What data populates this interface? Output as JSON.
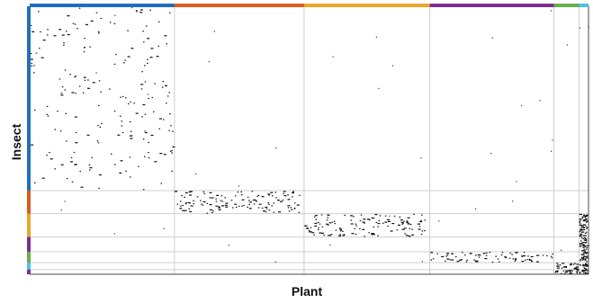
{
  "chart_data": {
    "type": "heatmap",
    "xlabel": "Plant",
    "ylabel": "Insect",
    "grid": true,
    "x_range": [
      0,
      100
    ],
    "y_range": [
      0,
      100
    ],
    "x_modules": [
      {
        "start": 0,
        "end": 25.9,
        "color": "#1f6fbf"
      },
      {
        "start": 25.9,
        "end": 49.1,
        "color": "#d95f1e"
      },
      {
        "start": 49.1,
        "end": 71.6,
        "color": "#e8a72a"
      },
      {
        "start": 71.6,
        "end": 93.8,
        "color": "#7e2f8e"
      },
      {
        "start": 93.8,
        "end": 98.3,
        "color": "#6ab04c"
      },
      {
        "start": 98.3,
        "end": 100,
        "color": "#4dbfe8"
      }
    ],
    "y_modules": [
      {
        "start": 0,
        "end": 68.8,
        "color": "#1f6fbf"
      },
      {
        "start": 68.8,
        "end": 77.4,
        "color": "#d95f1e"
      },
      {
        "start": 77.4,
        "end": 86.1,
        "color": "#e8a72a"
      },
      {
        "start": 86.1,
        "end": 91.6,
        "color": "#7e2f8e"
      },
      {
        "start": 91.6,
        "end": 95.7,
        "color": "#6ab04c"
      },
      {
        "start": 95.7,
        "end": 98.3,
        "color": "#4dbfe8"
      },
      {
        "start": 98.3,
        "end": 100,
        "color": "#7e2f8e"
      }
    ],
    "blocks": [
      {
        "name": "blue-module",
        "x": [
          0,
          25.9
        ],
        "y": [
          0,
          68.8
        ],
        "density": 0.012
      },
      {
        "name": "orange-module",
        "x": [
          25.9,
          49.1
        ],
        "y": [
          68.8,
          77.4
        ],
        "density": 0.07
      },
      {
        "name": "yellow-module",
        "x": [
          49.1,
          71.6
        ],
        "y": [
          77.4,
          86.1
        ],
        "density": 0.07
      },
      {
        "name": "purple-module",
        "x": [
          71.6,
          93.8
        ],
        "y": [
          91.6,
          95.7
        ],
        "density": 0.09
      },
      {
        "name": "green-module",
        "x": [
          93.8,
          98.3
        ],
        "y": [
          95.7,
          100
        ],
        "density": 0.25
      },
      {
        "name": "cyan-module",
        "x": [
          98.3,
          100
        ],
        "y": [
          77.4,
          100
        ],
        "density": 0.4
      }
    ]
  }
}
